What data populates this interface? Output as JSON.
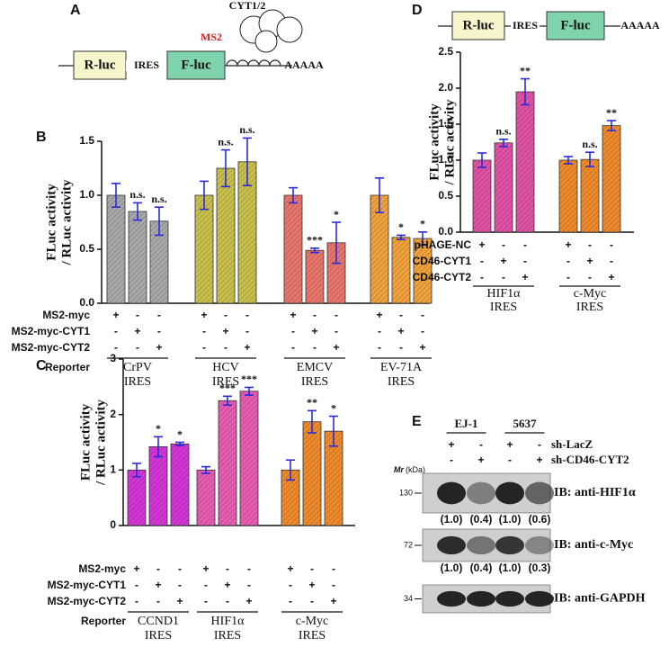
{
  "panel_a": {
    "letter": "A",
    "cyt_label": "CYT1/2",
    "ms2_label": "MS2",
    "rluc": "R-luc",
    "ires": "IRES",
    "fluc": "F-luc",
    "polya": "AAAAA"
  },
  "panel_d_diagram": {
    "letter": "D",
    "rluc": "R-luc",
    "ires": "IRES",
    "fluc": "F-luc",
    "polya": "AAAAA"
  },
  "chart_data": [
    {
      "type": "bar",
      "panel": "B",
      "ylabel": [
        "FLuc activity",
        "/ RLuc activity"
      ],
      "ylim": [
        0,
        1.5
      ],
      "yticks": [
        {
          "value": 0,
          "label": "0.0"
        },
        0.5,
        {
          "value": 1,
          "label": "1.0"
        },
        1.5
      ],
      "categories": [
        [
          "CrPV",
          "IRES"
        ],
        [
          "HCV",
          "IRES"
        ],
        [
          "EMCV",
          "IRES"
        ],
        [
          "EV-71A",
          "IRES"
        ]
      ],
      "colors": [
        "#a8a8a8",
        "#c9c04c",
        "#e8766c",
        "#f0a23c"
      ],
      "error_color": "#2b2bdc",
      "row_header": "Reporter",
      "signs": [
        "+",
        "-"
      ],
      "series": [
        {
          "name": "MS2-myc",
          "values": [
            1.0,
            1.0,
            1.0,
            1.0
          ],
          "errors": [
            0.11,
            0.13,
            0.07,
            0.16
          ],
          "annotations": [
            null,
            null,
            null,
            null
          ]
        },
        {
          "name": "MS2-myc-CYT1",
          "values": [
            0.85,
            1.25,
            0.49,
            0.61
          ],
          "errors": [
            0.08,
            0.17,
            0.02,
            0.02
          ],
          "annotations": [
            "n.s.",
            "n.s.",
            "***",
            "*"
          ]
        },
        {
          "name": "MS2-myc-CYT2",
          "values": [
            0.76,
            1.31,
            0.56,
            0.6
          ],
          "errors": [
            0.13,
            0.22,
            0.19,
            0.06
          ],
          "annotations": [
            "n.s.",
            "n.s.",
            "*",
            "*"
          ]
        }
      ]
    },
    {
      "type": "bar",
      "panel": "C",
      "ylabel": [
        "FLuc activity",
        "/ RLuc activity"
      ],
      "ylim": [
        0,
        3
      ],
      "yticks": [
        0,
        1,
        2,
        3
      ],
      "categories": [
        [
          "CCND1",
          "IRES"
        ],
        [
          "HIF1α",
          "IRES"
        ],
        [
          "c-Myc",
          "IRES"
        ]
      ],
      "colors": [
        "#d436d6",
        "#e85cb2",
        "#ee8a2c"
      ],
      "error_color": "#2b2bdc",
      "row_header": "Reporter",
      "signs": [
        "+",
        "-"
      ],
      "series": [
        {
          "name": "MS2-myc",
          "values": [
            1.0,
            1.0,
            1.0
          ],
          "errors": [
            0.12,
            0.06,
            0.18
          ],
          "annotations": [
            null,
            null,
            null
          ]
        },
        {
          "name": "MS2-myc-CYT1",
          "values": [
            1.42,
            2.25,
            1.87
          ],
          "errors": [
            0.18,
            0.08,
            0.2
          ],
          "annotations": [
            "*",
            "***",
            "**"
          ]
        },
        {
          "name": "MS2-myc-CYT2",
          "values": [
            1.47,
            2.42,
            1.7
          ],
          "errors": [
            0.03,
            0.07,
            0.27
          ],
          "annotations": [
            "*",
            "***",
            "*"
          ]
        }
      ]
    },
    {
      "type": "bar",
      "panel": "D",
      "ylabel": [
        "FLuc activity",
        "/ RLuc activity"
      ],
      "ylim": [
        0,
        2.5
      ],
      "yticks": [
        {
          "value": 0,
          "label": "0.0"
        },
        0.5,
        {
          "value": 1,
          "label": "1.0"
        },
        1.5,
        {
          "value": 2,
          "label": "2.0"
        },
        2.5
      ],
      "categories": [
        [
          "HIF1α",
          "IRES"
        ],
        [
          "c-Myc",
          "IRES"
        ]
      ],
      "colors": [
        "#e052a6",
        "#ee8a2c"
      ],
      "error_color": "#2b2bdc",
      "signs": [
        "+",
        "-"
      ],
      "series": [
        {
          "name": "pHAGE-NC",
          "values": [
            1.0,
            1.0
          ],
          "errors": [
            0.1,
            0.05
          ],
          "annotations": [
            null,
            null
          ]
        },
        {
          "name": "CD46-CYT1",
          "values": [
            1.24,
            1.01
          ],
          "errors": [
            0.05,
            0.1
          ],
          "annotations": [
            "n.s.",
            "n.s."
          ]
        },
        {
          "name": "CD46-CYT2",
          "values": [
            1.95,
            1.48
          ],
          "errors": [
            0.18,
            0.07
          ],
          "annotations": [
            "**",
            "**"
          ]
        }
      ]
    }
  ],
  "panel_e": {
    "letter": "E",
    "cell_lines": [
      "EJ-1",
      "5637"
    ],
    "signs": [
      "+",
      "-"
    ],
    "conditions": [
      {
        "name": "sh-LacZ",
        "pattern": [
          0,
          1,
          0,
          1
        ]
      },
      {
        "name": "sh-CD46-CYT2",
        "pattern": [
          1,
          0,
          1,
          0
        ]
      }
    ],
    "mr_label": "Mr",
    "mr_unit": "(kDa)",
    "blots": [
      {
        "marker": "130",
        "label": "IB: anti-HIF1α",
        "quant": [
          "(1.0)",
          "(0.4)",
          "(1.0)",
          "(0.6)"
        ]
      },
      {
        "marker": "72",
        "label": "IB: anti-c-Myc",
        "quant": [
          "(1.0)",
          "(0.4)",
          "(1.0)",
          "(0.3)"
        ]
      },
      {
        "marker": "34",
        "label": "IB: anti-GAPDH"
      }
    ]
  }
}
